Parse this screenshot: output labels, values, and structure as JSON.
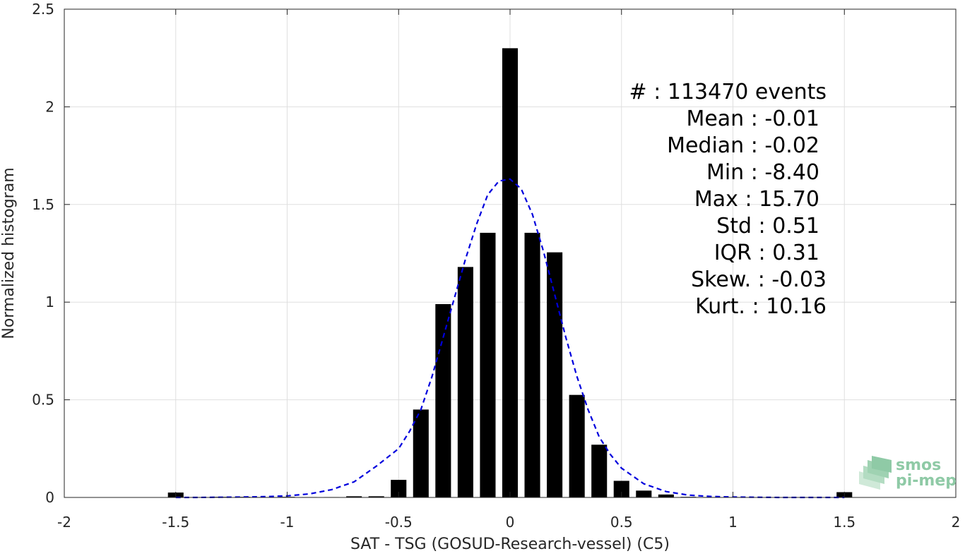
{
  "chart_data": {
    "type": "bar",
    "title": "",
    "xlabel": "SAT - TSG (GOSUD-Research-vessel) (C5)",
    "ylabel": "Normalized histogram",
    "xlim": [
      -2,
      2
    ],
    "ylim": [
      0,
      2.5
    ],
    "xticks": [
      -2,
      -1.5,
      -1,
      -0.5,
      0,
      0.5,
      1,
      1.5,
      2
    ],
    "xtick_labels": [
      "-2",
      "-1.5",
      "-1",
      "-0.5",
      "0",
      "0.5",
      "1",
      "1.5",
      "2"
    ],
    "yticks": [
      0,
      0.5,
      1,
      1.5,
      2,
      2.5
    ],
    "ytick_labels": [
      "0",
      "0.5",
      "1",
      "1.5",
      "2",
      "2.5"
    ],
    "grid": true,
    "bar_color": "#000000",
    "bar_width": 0.07,
    "bars": {
      "x": [
        -1.5,
        -1.4,
        -1.3,
        -1.2,
        -1.1,
        -1.0,
        -0.9,
        -0.8,
        -0.7,
        -0.6,
        -0.5,
        -0.4,
        -0.3,
        -0.2,
        -0.1,
        0.0,
        0.1,
        0.2,
        0.3,
        0.4,
        0.5,
        0.6,
        0.7,
        0.8,
        0.9,
        1.0,
        1.1,
        1.2,
        1.3,
        1.4,
        1.5
      ],
      "values": [
        0.025,
        0.002,
        0.003,
        0.003,
        0.002,
        0.003,
        0.002,
        0.002,
        0.006,
        0.006,
        0.09,
        0.45,
        0.99,
        1.18,
        1.355,
        2.3,
        1.355,
        1.255,
        0.525,
        0.27,
        0.085,
        0.035,
        0.015,
        0.003,
        0.002,
        0.002,
        0.001,
        0.001,
        0.001,
        0.001,
        0.027
      ]
    },
    "fit_curve": {
      "style": "dashed",
      "color": "#0000dd",
      "x": [
        -1.5,
        -1.4,
        -1.3,
        -1.2,
        -1.1,
        -1.0,
        -0.9,
        -0.8,
        -0.7,
        -0.6,
        -0.5,
        -0.45,
        -0.4,
        -0.35,
        -0.3,
        -0.25,
        -0.2,
        -0.15,
        -0.1,
        -0.05,
        0.0,
        0.05,
        0.1,
        0.15,
        0.2,
        0.25,
        0.3,
        0.35,
        0.4,
        0.45,
        0.5,
        0.6,
        0.7,
        0.8,
        0.9,
        1.0,
        1.1,
        1.2,
        1.3,
        1.4,
        1.5
      ],
      "y": [
        0.0,
        0.0,
        0.001,
        0.002,
        0.004,
        0.008,
        0.018,
        0.04,
        0.08,
        0.16,
        0.25,
        0.34,
        0.45,
        0.62,
        0.82,
        1.02,
        1.22,
        1.4,
        1.55,
        1.62,
        1.63,
        1.58,
        1.45,
        1.26,
        1.04,
        0.82,
        0.62,
        0.45,
        0.31,
        0.22,
        0.15,
        0.07,
        0.03,
        0.012,
        0.005,
        0.002,
        0.001,
        0.0,
        0.0,
        0.0,
        0.0
      ]
    },
    "annotations": [
      "#  : 113470 events",
      "Mean : -0.01",
      "Median : -0.02",
      "Min : -8.40",
      "Max : 15.70",
      "Std : 0.51",
      "IQR : 0.31",
      "Skew. : -0.03",
      "Kurt. : 10.16"
    ]
  },
  "logo": {
    "line1": "smos",
    "line2": "pi-mep",
    "color": "#8fcaa6"
  }
}
